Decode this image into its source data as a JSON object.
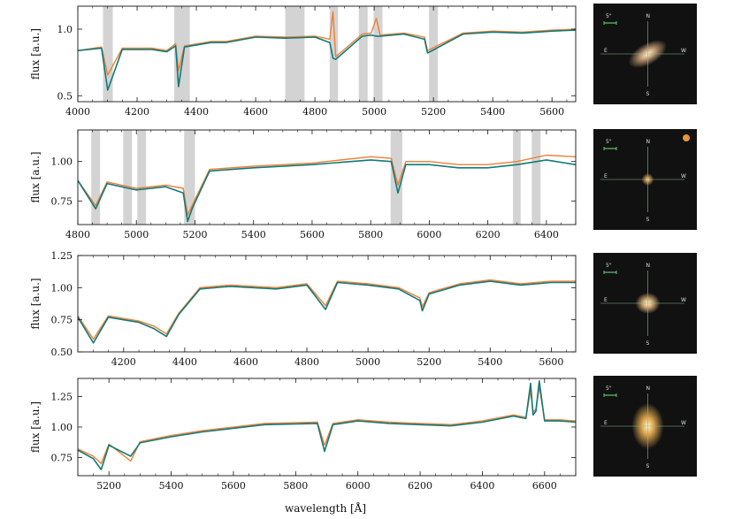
{
  "figure": {
    "xlabel": "wavelength [Å]",
    "colors": {
      "observed": "#ef7f33",
      "model": "#127a7a",
      "mask": "#d3d3d3"
    },
    "cutout_labels": {
      "scale": "5\"",
      "north": "N",
      "south": "S",
      "east": "E",
      "west": "W"
    }
  },
  "chart_data": [
    {
      "type": "line",
      "xlabel": "",
      "ylabel": "flux [a.u.]",
      "xlim": [
        4000,
        5680
      ],
      "ylim": [
        0.47,
        1.27
      ],
      "log_y": true,
      "xticks": [
        4000,
        4200,
        4400,
        4600,
        4800,
        5000,
        5200,
        5400,
        5600
      ],
      "yticks": [
        0.5,
        1.0
      ],
      "ytick_labels": [
        "0.5",
        "1.0"
      ],
      "masks": [
        [
          4085,
          4118
        ],
        [
          4325,
          4378
        ],
        [
          4700,
          4765
        ],
        [
          4850,
          4878
        ],
        [
          4948,
          4978
        ],
        [
          4998,
          5028
        ],
        [
          5185,
          5215
        ]
      ],
      "series": [
        {
          "color": "#ef7f33",
          "x": [
            4000,
            4080,
            4101,
            4150,
            4250,
            4300,
            4330,
            4340,
            4360,
            4450,
            4500,
            4600,
            4700,
            4800,
            4850,
            4861,
            4870,
            4960,
            4990,
            5007,
            5020,
            5100,
            5170,
            5180,
            5300,
            5400,
            5500,
            5600,
            5680
          ],
          "y": [
            0.8,
            0.83,
            0.62,
            0.82,
            0.82,
            0.8,
            0.86,
            0.65,
            0.84,
            0.88,
            0.88,
            0.93,
            0.92,
            0.93,
            0.9,
            1.2,
            0.75,
            0.95,
            0.96,
            1.12,
            0.94,
            0.96,
            0.92,
            0.8,
            0.96,
            0.98,
            0.97,
            0.99,
            1.0
          ]
        },
        {
          "color": "#127a7a",
          "x": [
            4000,
            4080,
            4101,
            4150,
            4250,
            4300,
            4330,
            4340,
            4360,
            4450,
            4500,
            4600,
            4700,
            4800,
            4850,
            4861,
            4870,
            4960,
            4990,
            5007,
            5020,
            5100,
            5170,
            5180,
            5300,
            5400,
            5500,
            5600,
            5680
          ],
          "y": [
            0.8,
            0.82,
            0.53,
            0.81,
            0.81,
            0.79,
            0.84,
            0.55,
            0.83,
            0.87,
            0.87,
            0.92,
            0.91,
            0.92,
            0.87,
            0.74,
            0.73,
            0.93,
            0.94,
            0.93,
            0.93,
            0.95,
            0.9,
            0.78,
            0.95,
            0.97,
            0.96,
            0.98,
            0.99
          ]
        }
      ]
    },
    {
      "type": "line",
      "xlabel": "",
      "ylabel": "flux [a.u.]",
      "xlim": [
        4800,
        6500
      ],
      "ylim": [
        0.6,
        1.2
      ],
      "xticks": [
        4800,
        5000,
        5200,
        5400,
        5600,
        5800,
        6000,
        6200,
        6400
      ],
      "yticks": [
        0.75,
        1.0
      ],
      "ytick_labels": [
        "0.75",
        "1.00"
      ],
      "masks": [
        [
          4846,
          4876
        ],
        [
          4955,
          4985
        ],
        [
          5003,
          5033
        ],
        [
          5163,
          5200
        ],
        [
          5868,
          5908
        ],
        [
          6286,
          6312
        ],
        [
          6350,
          6380
        ]
      ],
      "series": [
        {
          "color": "#ef7f33",
          "x": [
            4800,
            4861,
            4900,
            5000,
            5100,
            5160,
            5175,
            5190,
            5250,
            5400,
            5600,
            5800,
            5870,
            5893,
            5920,
            6000,
            6100,
            6200,
            6300,
            6400,
            6500
          ],
          "y": [
            0.88,
            0.72,
            0.87,
            0.83,
            0.85,
            0.83,
            0.66,
            0.72,
            0.95,
            0.97,
            0.99,
            1.03,
            1.02,
            0.85,
            1.0,
            1.0,
            0.98,
            0.98,
            1.0,
            1.04,
            1.03
          ]
        },
        {
          "color": "#127a7a",
          "x": [
            4800,
            4861,
            4900,
            5000,
            5100,
            5160,
            5175,
            5190,
            5250,
            5400,
            5600,
            5800,
            5870,
            5893,
            5920,
            6000,
            6100,
            6200,
            6300,
            6400,
            6500
          ],
          "y": [
            0.88,
            0.7,
            0.86,
            0.82,
            0.84,
            0.8,
            0.62,
            0.7,
            0.94,
            0.96,
            0.98,
            1.01,
            1.0,
            0.8,
            0.98,
            0.98,
            0.96,
            0.96,
            0.98,
            1.01,
            0.98
          ]
        }
      ]
    },
    {
      "type": "line",
      "xlabel": "",
      "ylabel": "flux [a.u.]",
      "xlim": [
        4050,
        5680
      ],
      "ylim": [
        0.5,
        1.25
      ],
      "xticks": [
        4200,
        4400,
        4600,
        4800,
        5000,
        5200,
        5400,
        5600
      ],
      "yticks": [
        0.5,
        0.75,
        1.0,
        1.25
      ],
      "ytick_labels": [
        "0.50",
        "0.75",
        "1.00",
        "1.25"
      ],
      "masks": [],
      "series": [
        {
          "color": "#ef7f33",
          "x": [
            4050,
            4101,
            4150,
            4250,
            4300,
            4340,
            4380,
            4450,
            4550,
            4700,
            4800,
            4861,
            4900,
            5000,
            5100,
            5170,
            5178,
            5200,
            5300,
            5400,
            5500,
            5600,
            5680
          ],
          "y": [
            0.78,
            0.6,
            0.78,
            0.74,
            0.7,
            0.64,
            0.8,
            1.0,
            1.02,
            1.0,
            1.03,
            0.86,
            1.05,
            1.03,
            1.0,
            0.92,
            0.85,
            0.96,
            1.03,
            1.06,
            1.03,
            1.05,
            1.05
          ]
        },
        {
          "color": "#127a7a",
          "x": [
            4050,
            4101,
            4150,
            4250,
            4300,
            4340,
            4380,
            4450,
            4550,
            4700,
            4800,
            4861,
            4900,
            5000,
            5100,
            5170,
            5178,
            5200,
            5300,
            5400,
            5500,
            5600,
            5680
          ],
          "y": [
            0.77,
            0.57,
            0.77,
            0.73,
            0.68,
            0.62,
            0.79,
            0.99,
            1.01,
            0.99,
            1.02,
            0.83,
            1.04,
            1.02,
            0.99,
            0.9,
            0.82,
            0.95,
            1.02,
            1.05,
            1.02,
            1.04,
            1.04
          ]
        }
      ]
    },
    {
      "type": "line",
      "xlabel": "wavelength [Å]",
      "ylabel": "flux [a.u.]",
      "xlim": [
        5100,
        6700
      ],
      "ylim": [
        0.6,
        1.4
      ],
      "xticks": [
        5200,
        5400,
        5600,
        5800,
        6000,
        6200,
        6400,
        6600
      ],
      "yticks": [
        0.75,
        1.0,
        1.25
      ],
      "ytick_labels": [
        "0.75",
        "1.00",
        "1.25"
      ],
      "masks": [],
      "series": [
        {
          "color": "#ef7f33",
          "x": [
            5100,
            5150,
            5175,
            5200,
            5270,
            5300,
            5400,
            5500,
            5700,
            5870,
            5893,
            5920,
            6000,
            6100,
            6200,
            6300,
            6400,
            6500,
            6540,
            6555,
            6563,
            6572,
            6583,
            6600,
            6650,
            6700
          ],
          "y": [
            0.82,
            0.76,
            0.7,
            0.86,
            0.72,
            0.88,
            0.93,
            0.97,
            1.03,
            1.04,
            0.85,
            1.03,
            1.06,
            1.04,
            1.03,
            1.02,
            1.05,
            1.1,
            1.08,
            1.3,
            1.12,
            1.15,
            1.33,
            1.06,
            1.06,
            1.05
          ]
        },
        {
          "color": "#127a7a",
          "x": [
            5100,
            5150,
            5175,
            5200,
            5270,
            5300,
            5400,
            5500,
            5700,
            5870,
            5893,
            5920,
            6000,
            6100,
            6200,
            6300,
            6400,
            6500,
            6540,
            6555,
            6563,
            6572,
            6583,
            6600,
            6650,
            6700
          ],
          "y": [
            0.81,
            0.74,
            0.65,
            0.85,
            0.76,
            0.87,
            0.92,
            0.96,
            1.02,
            1.03,
            0.8,
            1.02,
            1.05,
            1.03,
            1.02,
            1.01,
            1.04,
            1.09,
            1.07,
            1.36,
            1.1,
            1.13,
            1.38,
            1.05,
            1.05,
            1.04
          ]
        }
      ]
    }
  ]
}
